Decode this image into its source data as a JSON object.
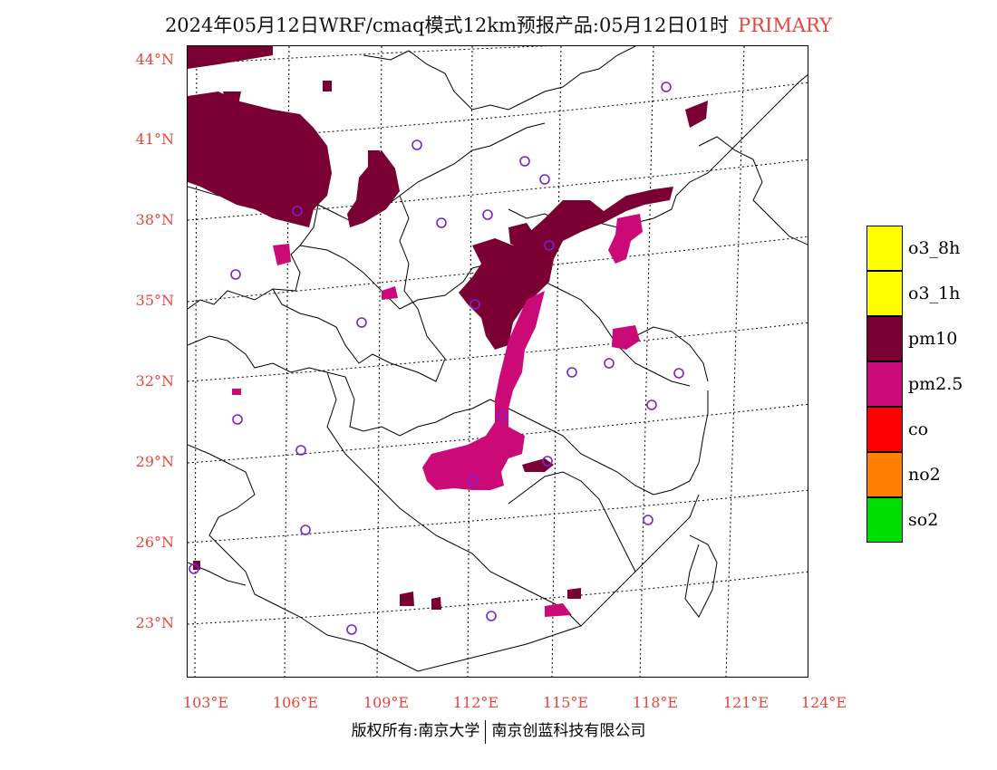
{
  "header": {
    "title": "2024年05月12日WRF/cmaq模式12km预报产品:05月12日01时",
    "tag": "PRIMARY"
  },
  "axes": {
    "lat_labels": [
      "44°N",
      "41°N",
      "38°N",
      "35°N",
      "32°N",
      "29°N",
      "26°N",
      "23°N"
    ],
    "lon_labels": [
      "103°E",
      "106°E",
      "109°E",
      "112°E",
      "115°E",
      "118°E",
      "121°E",
      "124°E"
    ]
  },
  "legend": [
    {
      "label": "o3_8h",
      "color": "#ffff00"
    },
    {
      "label": "o3_1h",
      "color": "#ffff00"
    },
    {
      "label": "pm10",
      "color": "#7a0033"
    },
    {
      "label": "pm2.5",
      "color": "#cc0a77"
    },
    {
      "label": "co",
      "color": "#ff0000"
    },
    {
      "label": "no2",
      "color": "#ff7f00"
    },
    {
      "label": "so2",
      "color": "#00dd00"
    }
  ],
  "colors": {
    "pm10": "#7a0033",
    "pm25": "#cc0a77",
    "station_ring": "#7a22cc",
    "label_red": "#e8453c"
  },
  "footer": {
    "left": "版权所有:南京大学",
    "right": "南京创蓝科技有限公司"
  }
}
